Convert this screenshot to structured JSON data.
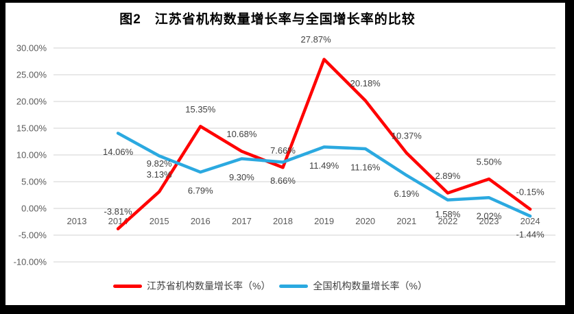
{
  "frame": {
    "background_color": "#000000",
    "chart_background_color": "#ffffff"
  },
  "chart_data": {
    "type": "line",
    "title": "图2　江苏省机构数量增长率与全国增长率的比较",
    "categories": [
      "2013",
      "2014",
      "2015",
      "2016",
      "2017",
      "2018",
      "2019",
      "2020",
      "2021",
      "2022",
      "2023",
      "2024"
    ],
    "series": [
      {
        "name": "江苏省机构数量增长率（%）",
        "color": "#FF0000",
        "values": [
          null,
          -3.81,
          3.13,
          15.35,
          10.68,
          7.66,
          27.87,
          20.18,
          10.37,
          2.89,
          5.5,
          -0.15
        ],
        "labels": [
          "",
          "-3.81%",
          "3.13%",
          "15.35%",
          "10.68%",
          "7.66%",
          "27.87%",
          "20.18%",
          "10.37%",
          "2.89%",
          "5.50%",
          "-0.15%"
        ]
      },
      {
        "name": "全国机构数量增长率（%）",
        "color": "#2BA9E0",
        "values": [
          null,
          14.06,
          9.82,
          6.79,
          9.3,
          8.66,
          11.49,
          11.16,
          6.19,
          1.58,
          2.02,
          -1.44
        ],
        "labels": [
          "",
          "14.06%",
          "9.82%",
          "6.79%",
          "9.30%",
          "8.66%",
          "11.49%",
          "11.16%",
          "6.19%",
          "1.58%",
          "2.02%",
          "-1.44%"
        ]
      }
    ],
    "y_axis": {
      "min": -10,
      "max": 30,
      "step": 5,
      "tick_labels": [
        "30.00%",
        "25.00%",
        "20.00%",
        "15.00%",
        "10.00%",
        "5.00%",
        "0.00%",
        "-5.00%",
        "-10.00%"
      ]
    },
    "grid": true,
    "legend_position": "bottom",
    "gridline_color": "#D9D9D9",
    "text_colors": {
      "axis": "#595959",
      "data_label": "#404040",
      "title": "#000000"
    }
  }
}
